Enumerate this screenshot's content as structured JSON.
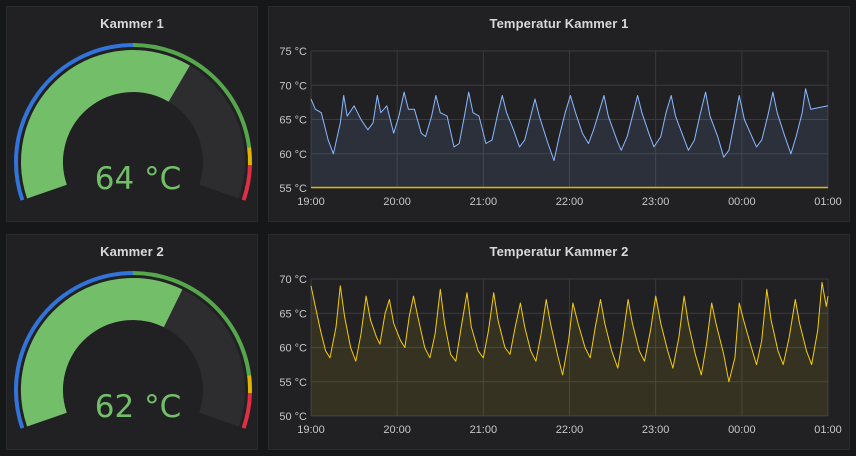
{
  "theme": {
    "background": "#161719",
    "panel": "#212124",
    "gauge_green": "#73bf69",
    "gauge_track": "#2d2d30",
    "threshold_blue": "#3274d9",
    "threshold_green": "#56a64b",
    "threshold_yellow": "#e0b400",
    "threshold_red": "#e02f44",
    "series1_color": "#8ab8ff",
    "series2_color": "#f2cc0c"
  },
  "gauges": [
    {
      "title": "Kammer 1",
      "value": 64,
      "unit": "°C",
      "display": "64 °C",
      "min": 0,
      "max": 100,
      "thresholds": [
        {
          "from": 0,
          "to": 50,
          "color": "blue"
        },
        {
          "from": 50,
          "to": 88,
          "color": "green"
        },
        {
          "from": 88,
          "to": 92,
          "color": "yellow"
        },
        {
          "from": 92,
          "to": 100,
          "color": "red"
        }
      ]
    },
    {
      "title": "Kammer 2",
      "value": 62,
      "unit": "°C",
      "display": "62 °C",
      "min": 0,
      "max": 100,
      "thresholds": [
        {
          "from": 0,
          "to": 50,
          "color": "blue"
        },
        {
          "from": 50,
          "to": 88,
          "color": "green"
        },
        {
          "from": 88,
          "to": 92,
          "color": "yellow"
        },
        {
          "from": 92,
          "to": 100,
          "color": "red"
        }
      ]
    }
  ],
  "chart_data": [
    {
      "type": "area",
      "title": "Temperatur Kammer 1",
      "x_ticks": [
        "19:00",
        "20:00",
        "21:00",
        "22:00",
        "23:00",
        "00:00",
        "01:00"
      ],
      "y_ticks": [
        "55 °C",
        "60 °C",
        "65 °C",
        "70 °C",
        "75 °C"
      ],
      "ylim": [
        55,
        75
      ],
      "x_range_hours": [
        0,
        6
      ],
      "grid": true,
      "baseline_value": 55,
      "series": [
        {
          "color": "#8ab8ff",
          "points": [
            [
              0.0,
              68.0
            ],
            [
              0.05,
              66.5
            ],
            [
              0.12,
              66.0
            ],
            [
              0.2,
              62.0
            ],
            [
              0.26,
              60.0
            ],
            [
              0.34,
              64.5
            ],
            [
              0.38,
              68.5
            ],
            [
              0.42,
              65.5
            ],
            [
              0.5,
              67.0
            ],
            [
              0.58,
              65.0
            ],
            [
              0.66,
              63.5
            ],
            [
              0.72,
              64.5
            ],
            [
              0.77,
              68.5
            ],
            [
              0.81,
              66.0
            ],
            [
              0.88,
              67.0
            ],
            [
              0.96,
              63.0
            ],
            [
              1.02,
              65.5
            ],
            [
              1.08,
              69.0
            ],
            [
              1.13,
              66.5
            ],
            [
              1.2,
              66.5
            ],
            [
              1.28,
              63.0
            ],
            [
              1.33,
              62.5
            ],
            [
              1.4,
              65.5
            ],
            [
              1.45,
              68.5
            ],
            [
              1.5,
              66.0
            ],
            [
              1.58,
              65.5
            ],
            [
              1.66,
              61.0
            ],
            [
              1.72,
              61.5
            ],
            [
              1.78,
              65.5
            ],
            [
              1.83,
              69.0
            ],
            [
              1.88,
              66.0
            ],
            [
              1.95,
              65.5
            ],
            [
              2.03,
              61.5
            ],
            [
              2.1,
              62.0
            ],
            [
              2.17,
              66.0
            ],
            [
              2.22,
              68.5
            ],
            [
              2.27,
              66.0
            ],
            [
              2.35,
              63.5
            ],
            [
              2.42,
              61.0
            ],
            [
              2.48,
              62.0
            ],
            [
              2.55,
              65.5
            ],
            [
              2.6,
              68.0
            ],
            [
              2.65,
              65.5
            ],
            [
              2.75,
              61.5
            ],
            [
              2.82,
              59.0
            ],
            [
              2.88,
              62.5
            ],
            [
              2.95,
              66.0
            ],
            [
              3.01,
              68.5
            ],
            [
              3.07,
              66.0
            ],
            [
              3.15,
              63.0
            ],
            [
              3.22,
              61.5
            ],
            [
              3.28,
              63.5
            ],
            [
              3.34,
              66.0
            ],
            [
              3.4,
              68.5
            ],
            [
              3.45,
              65.5
            ],
            [
              3.55,
              62.0
            ],
            [
              3.6,
              60.5
            ],
            [
              3.67,
              62.5
            ],
            [
              3.74,
              66.0
            ],
            [
              3.79,
              68.5
            ],
            [
              3.84,
              66.0
            ],
            [
              3.92,
              63.0
            ],
            [
              3.98,
              61.0
            ],
            [
              4.06,
              62.5
            ],
            [
              4.12,
              66.0
            ],
            [
              4.18,
              68.5
            ],
            [
              4.23,
              65.5
            ],
            [
              4.32,
              62.5
            ],
            [
              4.38,
              60.5
            ],
            [
              4.45,
              62.0
            ],
            [
              4.52,
              66.0
            ],
            [
              4.58,
              69.0
            ],
            [
              4.63,
              65.5
            ],
            [
              4.72,
              62.5
            ],
            [
              4.79,
              59.5
            ],
            [
              4.85,
              60.5
            ],
            [
              4.92,
              65.0
            ],
            [
              4.97,
              68.5
            ],
            [
              5.03,
              65.0
            ],
            [
              5.1,
              63.0
            ],
            [
              5.17,
              61.0
            ],
            [
              5.23,
              62.0
            ],
            [
              5.3,
              65.5
            ],
            [
              5.36,
              69.0
            ],
            [
              5.41,
              66.0
            ],
            [
              5.5,
              62.5
            ],
            [
              5.57,
              60.0
            ],
            [
              5.63,
              62.5
            ],
            [
              5.7,
              66.0
            ],
            [
              5.74,
              69.5
            ],
            [
              5.8,
              66.5
            ],
            [
              6.0,
              67.0
            ]
          ]
        }
      ]
    },
    {
      "type": "area",
      "title": "Temperatur Kammer 2",
      "x_ticks": [
        "19:00",
        "20:00",
        "21:00",
        "22:00",
        "23:00",
        "00:00",
        "01:00"
      ],
      "y_ticks": [
        "50 °C",
        "55 °C",
        "60 °C",
        "65 °C",
        "70 °C"
      ],
      "ylim": [
        50,
        70
      ],
      "x_range_hours": [
        0,
        6
      ],
      "grid": true,
      "series": [
        {
          "color": "#f2cc0c",
          "points": [
            [
              0.0,
              69.0
            ],
            [
              0.05,
              66.0
            ],
            [
              0.11,
              62.5
            ],
            [
              0.17,
              59.5
            ],
            [
              0.22,
              58.5
            ],
            [
              0.29,
              63.0
            ],
            [
              0.34,
              69.0
            ],
            [
              0.39,
              64.5
            ],
            [
              0.46,
              60.0
            ],
            [
              0.52,
              58.0
            ],
            [
              0.58,
              62.0
            ],
            [
              0.64,
              67.5
            ],
            [
              0.69,
              64.0
            ],
            [
              0.76,
              61.5
            ],
            [
              0.8,
              60.5
            ],
            [
              0.86,
              65.0
            ],
            [
              0.91,
              67.0
            ],
            [
              0.96,
              63.5
            ],
            [
              1.04,
              61.0
            ],
            [
              1.09,
              60.0
            ],
            [
              1.14,
              64.5
            ],
            [
              1.19,
              67.5
            ],
            [
              1.24,
              64.5
            ],
            [
              1.32,
              60.0
            ],
            [
              1.38,
              58.5
            ],
            [
              1.44,
              62.0
            ],
            [
              1.5,
              68.5
            ],
            [
              1.55,
              63.5
            ],
            [
              1.62,
              59.0
            ],
            [
              1.68,
              58.0
            ],
            [
              1.75,
              63.5
            ],
            [
              1.81,
              68.0
            ],
            [
              1.86,
              63.0
            ],
            [
              1.94,
              59.5
            ],
            [
              2.0,
              58.5
            ],
            [
              2.06,
              62.5
            ],
            [
              2.12,
              68.0
            ],
            [
              2.17,
              64.0
            ],
            [
              2.25,
              60.0
            ],
            [
              2.31,
              59.0
            ],
            [
              2.37,
              63.0
            ],
            [
              2.43,
              66.5
            ],
            [
              2.48,
              63.0
            ],
            [
              2.55,
              59.5
            ],
            [
              2.61,
              58.0
            ],
            [
              2.67,
              62.0
            ],
            [
              2.73,
              67.0
            ],
            [
              2.78,
              63.5
            ],
            [
              2.86,
              59.0
            ],
            [
              2.92,
              56.0
            ],
            [
              2.99,
              61.0
            ],
            [
              3.04,
              66.5
            ],
            [
              3.1,
              63.5
            ],
            [
              3.18,
              60.0
            ],
            [
              3.24,
              58.5
            ],
            [
              3.3,
              63.0
            ],
            [
              3.36,
              67.0
            ],
            [
              3.41,
              63.5
            ],
            [
              3.49,
              59.5
            ],
            [
              3.56,
              57.0
            ],
            [
              3.62,
              61.5
            ],
            [
              3.68,
              67.0
            ],
            [
              3.73,
              63.5
            ],
            [
              3.81,
              59.5
            ],
            [
              3.87,
              58.0
            ],
            [
              3.94,
              62.5
            ],
            [
              4.0,
              67.5
            ],
            [
              4.06,
              63.5
            ],
            [
              4.14,
              59.5
            ],
            [
              4.2,
              57.0
            ],
            [
              4.27,
              61.5
            ],
            [
              4.33,
              67.5
            ],
            [
              4.38,
              63.5
            ],
            [
              4.46,
              59.0
            ],
            [
              4.53,
              56.0
            ],
            [
              4.59,
              60.5
            ],
            [
              4.65,
              66.5
            ],
            [
              4.7,
              63.5
            ],
            [
              4.79,
              59.0
            ],
            [
              4.85,
              55.0
            ],
            [
              4.92,
              58.5
            ],
            [
              4.97,
              66.5
            ],
            [
              5.02,
              64.0
            ],
            [
              5.1,
              60.5
            ],
            [
              5.17,
              57.5
            ],
            [
              5.23,
              61.0
            ],
            [
              5.29,
              68.5
            ],
            [
              5.34,
              64.0
            ],
            [
              5.42,
              59.5
            ],
            [
              5.48,
              57.5
            ],
            [
              5.55,
              61.5
            ],
            [
              5.62,
              67.0
            ],
            [
              5.67,
              63.5
            ],
            [
              5.75,
              59.5
            ],
            [
              5.81,
              57.5
            ],
            [
              5.88,
              62.5
            ],
            [
              5.93,
              69.5
            ],
            [
              5.98,
              66.0
            ],
            [
              6.0,
              67.5
            ]
          ]
        }
      ]
    }
  ]
}
